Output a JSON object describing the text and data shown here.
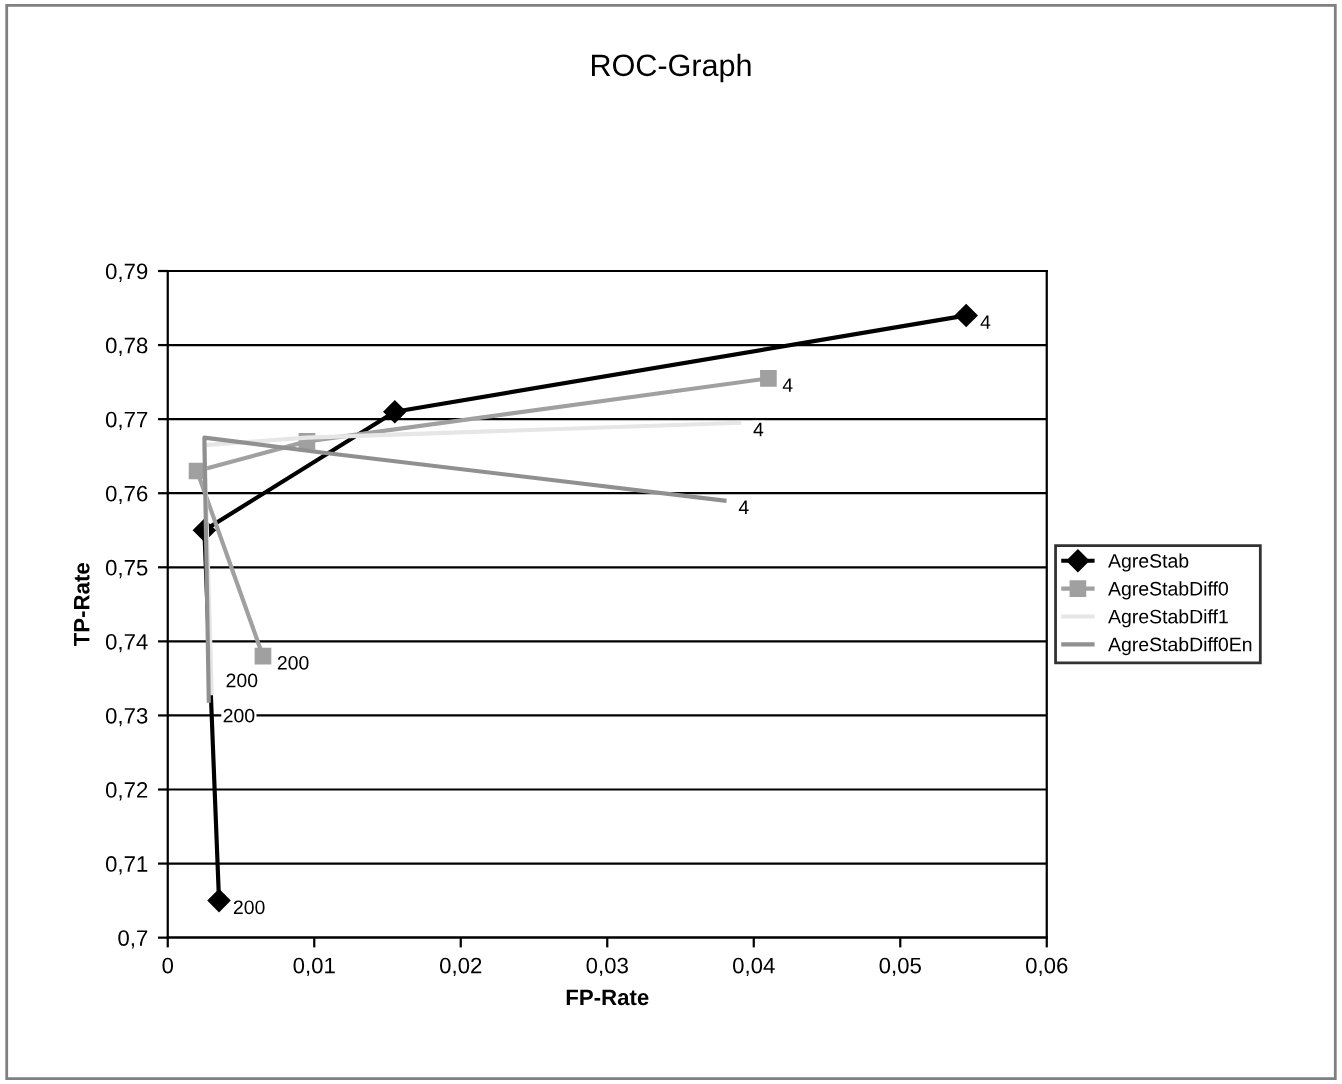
{
  "chart_data": {
    "type": "line",
    "title": "ROC-Graph",
    "xlabel": "FP-Rate",
    "ylabel": "TP-Rate",
    "xlim": [
      0,
      0.06
    ],
    "xticks": [
      {
        "value": 0,
        "label": "0"
      },
      {
        "value": 0.01,
        "label": "0,01"
      },
      {
        "value": 0.02,
        "label": "0,02"
      },
      {
        "value": 0.03,
        "label": "0,03"
      },
      {
        "value": 0.04,
        "label": "0,04"
      },
      {
        "value": 0.05,
        "label": "0,05"
      },
      {
        "value": 0.06,
        "label": "0,06"
      }
    ],
    "ylim": [
      0.7,
      0.79
    ],
    "yticks": [
      {
        "value": 0.7,
        "label": "0,7"
      },
      {
        "value": 0.71,
        "label": "0,71"
      },
      {
        "value": 0.72,
        "label": "0,72"
      },
      {
        "value": 0.73,
        "label": "0,73"
      },
      {
        "value": 0.74,
        "label": "0,74"
      },
      {
        "value": 0.75,
        "label": "0,75"
      },
      {
        "value": 0.76,
        "label": "0,76"
      },
      {
        "value": 0.77,
        "label": "0,77"
      },
      {
        "value": 0.78,
        "label": "0,78"
      },
      {
        "value": 0.79,
        "label": "0,79"
      }
    ],
    "grid": "y",
    "legend": "right",
    "series": [
      {
        "name": "AgreStab",
        "color": "#000000",
        "marker": "diamond",
        "x": [
          0.0035,
          0.0025,
          0.0155,
          0.0545
        ],
        "values": [
          0.705,
          0.755,
          0.771,
          0.784
        ]
      },
      {
        "name": "AgreStabDiff0",
        "color": "#a0a0a0",
        "marker": "square",
        "x": [
          0.0065,
          0.002,
          0.0095,
          0.041
        ],
        "values": [
          0.738,
          0.763,
          0.767,
          0.7755
        ]
      },
      {
        "name": "AgreStabDiff1",
        "color": "#e6e6e6",
        "marker": "none",
        "x": [
          0.003,
          0.0025,
          0.0095,
          0.039
        ],
        "values": [
          0.733,
          0.7665,
          0.7675,
          0.7695
        ]
      },
      {
        "name": "AgreStabDiff0En",
        "color": "#909090",
        "marker": "none",
        "x": [
          0.0028,
          0.0025,
          0.0105,
          0.038
        ],
        "values": [
          0.732,
          0.7675,
          0.7655,
          0.759
        ]
      }
    ],
    "annotations": [
      {
        "text": "200",
        "x": 0.0035,
        "y": 0.705
      },
      {
        "text": "4",
        "x": 0.0545,
        "y": 0.784
      },
      {
        "text": "200",
        "x": 0.0065,
        "y": 0.738
      },
      {
        "text": "4",
        "x": 0.041,
        "y": 0.7755
      },
      {
        "text": "200",
        "x": 0.003,
        "y": 0.733
      },
      {
        "text": "4",
        "x": 0.039,
        "y": 0.7695
      },
      {
        "text": "200",
        "x": 0.0028,
        "y": 0.732
      },
      {
        "text": "4",
        "x": 0.038,
        "y": 0.759
      }
    ]
  }
}
